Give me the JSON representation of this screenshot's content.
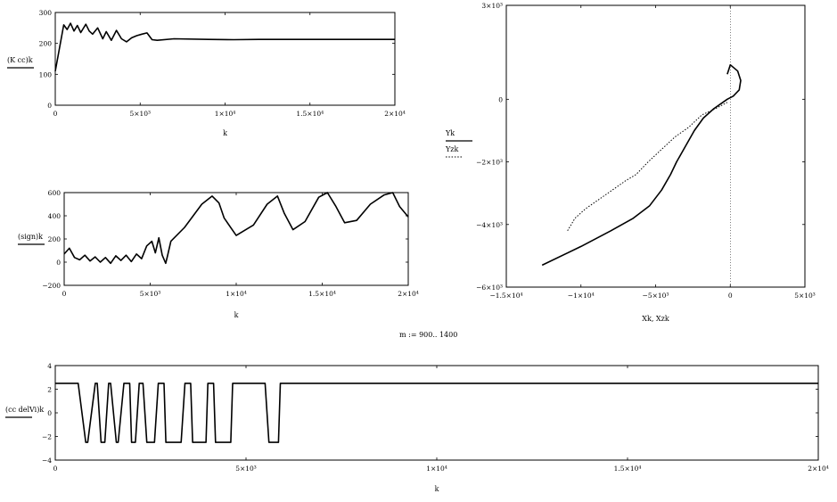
{
  "chart_data": [
    {
      "type": "line",
      "id": "kcc",
      "ylabel": "(K cc)k",
      "xlabel": "k",
      "xlim": [
        0,
        20000
      ],
      "ylim": [
        0,
        300
      ],
      "x_ticks": [
        0,
        5000,
        10000,
        15000,
        20000
      ],
      "x_tick_labels": [
        "0",
        "5×10³",
        "1×10⁴",
        "1.5×10⁴",
        "2×10⁴"
      ],
      "y_ticks": [
        0,
        100,
        200,
        300
      ],
      "y_tick_labels": [
        "0",
        "100",
        "200",
        "300"
      ],
      "series": [
        {
          "x": [
            0,
            200,
            500,
            700,
            900,
            1100,
            1300,
            1500,
            1800,
            2000,
            2200,
            2500,
            2800,
            3000,
            3300,
            3600,
            3900,
            4200,
            4500,
            4800,
            5100,
            5400,
            5700,
            6000,
            7000,
            9000,
            10500,
            12000,
            20000
          ],
          "y": [
            110,
            170,
            260,
            245,
            265,
            240,
            258,
            235,
            262,
            240,
            230,
            250,
            215,
            238,
            210,
            242,
            215,
            205,
            218,
            225,
            230,
            234,
            212,
            210,
            215,
            213,
            212,
            213,
            213
          ]
        }
      ]
    },
    {
      "type": "line",
      "id": "sign",
      "ylabel": "(sign)k",
      "xlabel": "k",
      "xlim": [
        0,
        20000
      ],
      "ylim": [
        -200,
        600
      ],
      "x_ticks": [
        0,
        5000,
        10000,
        15000,
        20000
      ],
      "x_tick_labels": [
        "0",
        "5×10³",
        "1×10⁴",
        "1.5×10⁴",
        "2×10⁴"
      ],
      "y_ticks": [
        -200,
        0,
        200,
        400,
        600
      ],
      "y_tick_labels": [
        "−200",
        "0",
        "200",
        "400",
        "600"
      ],
      "series": [
        {
          "x": [
            0,
            300,
            600,
            900,
            1200,
            1500,
            1800,
            2100,
            2400,
            2700,
            3000,
            3300,
            3600,
            3900,
            4200,
            4500,
            4800,
            5100,
            5300,
            5500,
            5700,
            5900,
            6000,
            6200,
            7000,
            8000,
            8600,
            9000,
            9300,
            10000,
            11000,
            11800,
            12400,
            12800,
            13300,
            14000,
            14800,
            15300,
            15800,
            16300,
            17000,
            17800,
            18600,
            19100,
            19500,
            20000
          ],
          "y": [
            70,
            120,
            40,
            20,
            60,
            10,
            45,
            0,
            40,
            -10,
            55,
            15,
            60,
            5,
            70,
            30,
            140,
            180,
            80,
            210,
            60,
            -10,
            50,
            180,
            300,
            500,
            570,
            510,
            380,
            230,
            320,
            500,
            570,
            420,
            280,
            350,
            560,
            600,
            480,
            340,
            360,
            500,
            580,
            600,
            480,
            390
          ]
        }
      ]
    },
    {
      "type": "line",
      "id": "xy",
      "ylabel": "Yk",
      "ylabel2": "Yzk",
      "xlabel": "Xk, Xzk",
      "xlim": [
        -15000,
        5000
      ],
      "ylim": [
        -6000,
        3000
      ],
      "x_ticks": [
        -15000,
        -10000,
        -5000,
        0,
        5000
      ],
      "x_tick_labels": [
        "−1.5×10⁴",
        "−1×10⁴",
        "−5×10³",
        "0",
        "5×10³"
      ],
      "y_ticks": [
        -6000,
        -4000,
        -2000,
        0,
        3000
      ],
      "y_tick_labels": [
        "−6×10³",
        "−4×10³",
        "−2×10³",
        "0",
        "3×10³"
      ],
      "series": [
        {
          "style": "solid",
          "x": [
            -12600,
            -10000,
            -8000,
            -6500,
            -5400,
            -4600,
            -4000,
            -3600,
            -3000,
            -2400,
            -1800,
            -1100,
            -500,
            -200,
            200,
            600,
            700,
            500,
            0,
            -200
          ],
          "y": [
            -5300,
            -4700,
            -4200,
            -3800,
            -3400,
            -2900,
            -2400,
            -2000,
            -1500,
            -1000,
            -600,
            -300,
            -100,
            0,
            100,
            300,
            600,
            900,
            1100,
            800
          ]
        },
        {
          "style": "dotted",
          "x": [
            -10900,
            -10400,
            -9700,
            -8800,
            -7900,
            -7000,
            -6300,
            -5500,
            -4600,
            -3700,
            -2800,
            -1900,
            -1000,
            -200
          ],
          "y": [
            -4200,
            -3800,
            -3500,
            -3200,
            -2900,
            -2600,
            -2400,
            -2000,
            -1600,
            -1200,
            -900,
            -500,
            -300,
            -100
          ]
        }
      ]
    },
    {
      "type": "line",
      "id": "ccdelvi",
      "ylabel": "(cc delVi)k",
      "xlabel": "k",
      "xlim": [
        0,
        20000
      ],
      "ylim": [
        -4,
        4
      ],
      "x_ticks": [
        0,
        5000,
        10000,
        15000,
        20000
      ],
      "x_tick_labels": [
        "0",
        "5×10³",
        "1×10⁴",
        "1.5×10⁴",
        "2×10⁴"
      ],
      "y_ticks": [
        -4,
        -2,
        0,
        2,
        4
      ],
      "y_tick_labels": [
        "−4",
        "−2",
        "0",
        "2",
        "4"
      ],
      "series": [
        {
          "x": [
            0,
            500,
            600,
            800,
            850,
            1050,
            1100,
            1200,
            1300,
            1400,
            1450,
            1600,
            1650,
            1800,
            1850,
            1950,
            2000,
            2100,
            2200,
            2300,
            2400,
            2600,
            2700,
            2850,
            2900,
            3300,
            3400,
            3550,
            3600,
            3950,
            4000,
            4150,
            4200,
            4600,
            4650,
            4850,
            5500,
            5600,
            5850,
            5900,
            20000
          ],
          "y": [
            2.5,
            2.5,
            2.5,
            -2.5,
            -2.5,
            2.5,
            2.5,
            -2.5,
            -2.5,
            2.5,
            2.5,
            -2.5,
            -2.5,
            2.5,
            2.5,
            2.5,
            -2.5,
            -2.5,
            2.5,
            2.5,
            -2.5,
            -2.5,
            2.5,
            2.5,
            -2.5,
            -2.5,
            2.5,
            2.5,
            -2.5,
            -2.5,
            2.5,
            2.5,
            -2.5,
            -2.5,
            2.5,
            2.5,
            2.5,
            -2.5,
            -2.5,
            2.5,
            2.5
          ]
        }
      ]
    }
  ],
  "annotation": "m := 900.. 1400"
}
